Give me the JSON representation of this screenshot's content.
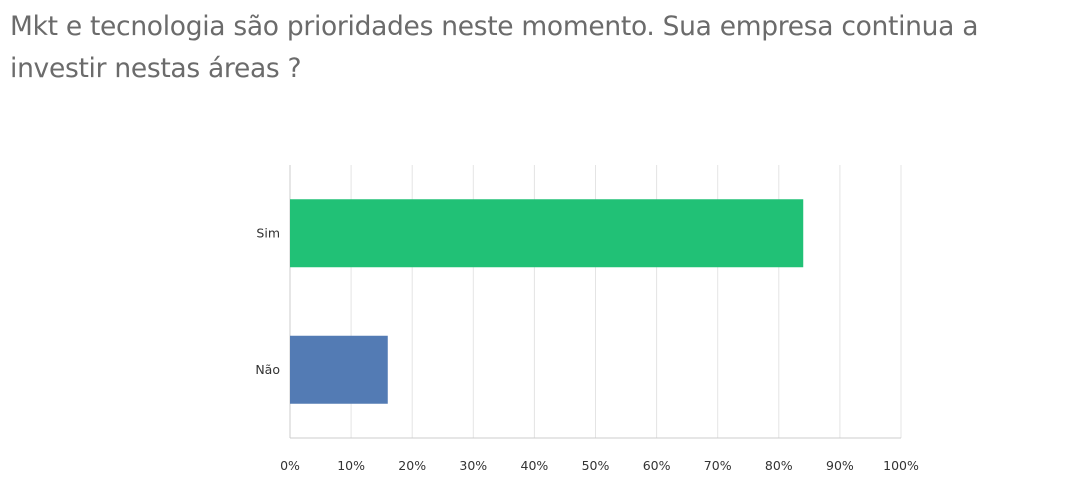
{
  "question": {
    "title": "Mkt e tecnologia são prioridades neste momento. Sua empresa continua a investir nestas áreas ?"
  },
  "chart_data": {
    "type": "bar",
    "orientation": "horizontal",
    "categories": [
      "Sim",
      "Não"
    ],
    "values": [
      84,
      16
    ],
    "colors": [
      "#21c176",
      "#537bb4"
    ],
    "xlim": [
      0,
      100
    ],
    "x_ticks": [
      "0%",
      "10%",
      "20%",
      "30%",
      "40%",
      "50%",
      "60%",
      "70%",
      "80%",
      "90%",
      "100%"
    ],
    "grid": true,
    "legend": "none"
  }
}
